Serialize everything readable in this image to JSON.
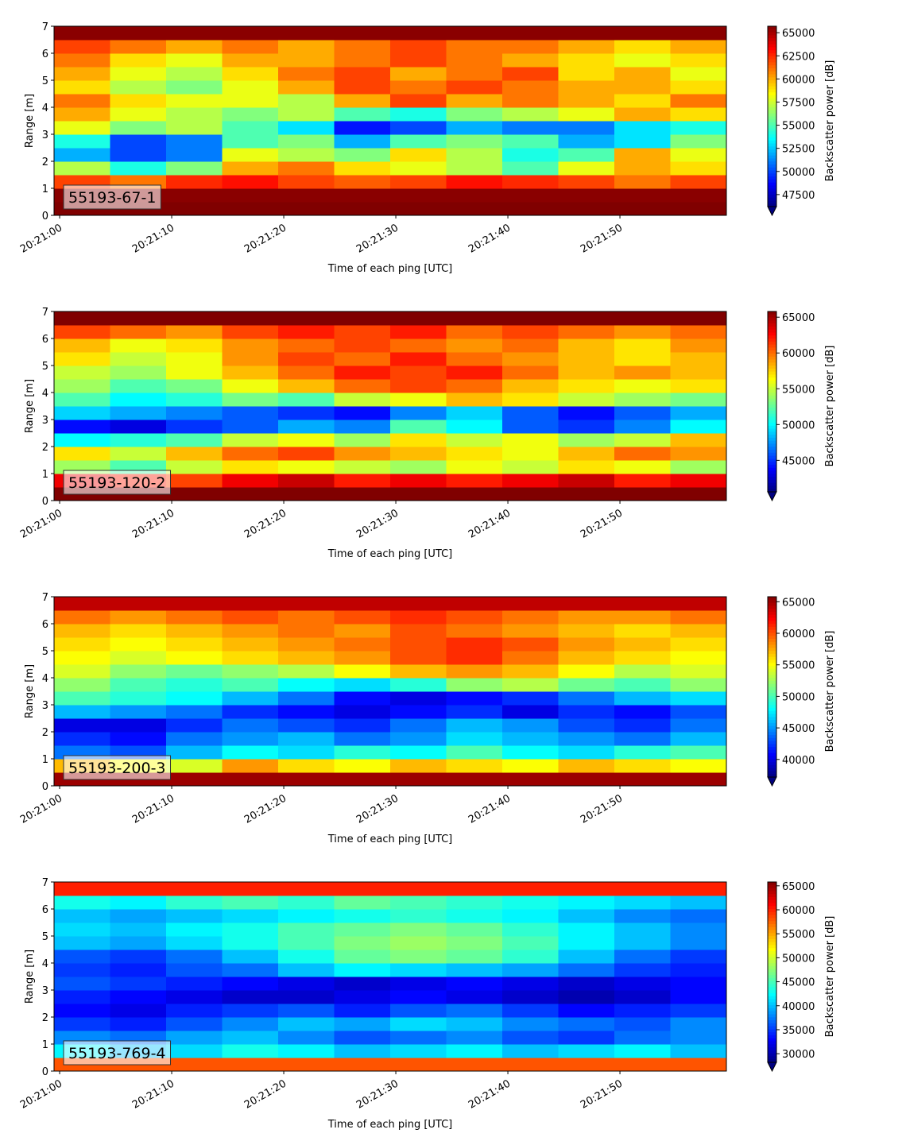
{
  "chart_data": [
    {
      "type": "heatmap",
      "annotation": "55193-67-1",
      "xlabel": "Time of each ping [UTC]",
      "ylabel": "Range [m]",
      "colorbar_label": "Backscatter power [dB]",
      "colormap": "jet",
      "x": [
        "20:21:02",
        "20:21:07",
        "20:21:12",
        "20:21:17",
        "20:21:22",
        "20:21:27",
        "20:21:32",
        "20:21:37",
        "20:21:42",
        "20:21:47",
        "20:21:52",
        "20:21:57"
      ],
      "y": [
        0.25,
        0.75,
        1.25,
        1.75,
        2.25,
        2.75,
        3.25,
        3.75,
        4.25,
        4.75,
        5.25,
        5.75,
        6.25,
        6.75
      ],
      "z": [
        [
          66000,
          66000,
          66000,
          66000,
          66000,
          66000,
          66000,
          66000,
          66000,
          66000,
          66000,
          66000
        ],
        [
          65500,
          65500,
          65500,
          65500,
          65500,
          65500,
          65500,
          65500,
          65500,
          65500,
          65500,
          65500
        ],
        [
          62000,
          61000,
          62500,
          63000,
          62000,
          61500,
          62000,
          63000,
          62500,
          62000,
          61000,
          62000
        ],
        [
          57000,
          54000,
          56000,
          60000,
          61000,
          59000,
          58000,
          57000,
          55000,
          58000,
          60000,
          59000
        ],
        [
          52000,
          50000,
          51000,
          58000,
          57000,
          56000,
          59000,
          57000,
          54000,
          55000,
          60000,
          58000
        ],
        [
          54000,
          50000,
          51000,
          55000,
          56000,
          52000,
          55000,
          56000,
          55000,
          52000,
          53000,
          56000
        ],
        [
          58000,
          56000,
          57000,
          55000,
          53000,
          49000,
          50000,
          52000,
          51000,
          51000,
          53000,
          54000
        ],
        [
          60000,
          58000,
          57000,
          56000,
          57000,
          55000,
          54000,
          56000,
          57000,
          58000,
          60000,
          59000
        ],
        [
          61000,
          59000,
          58000,
          58000,
          57000,
          60000,
          62000,
          60000,
          61000,
          60000,
          59000,
          61000
        ],
        [
          59000,
          57000,
          56000,
          58000,
          60000,
          62000,
          61000,
          62000,
          61000,
          60000,
          60000,
          59000
        ],
        [
          60000,
          58000,
          57000,
          59000,
          61000,
          62000,
          60000,
          61000,
          62000,
          59000,
          60000,
          58000
        ],
        [
          61000,
          59000,
          58000,
          60000,
          60000,
          61000,
          62000,
          61000,
          60000,
          59000,
          58000,
          59000
        ],
        [
          62000,
          61000,
          60000,
          61000,
          60000,
          61000,
          62000,
          61000,
          61000,
          60000,
          59000,
          60000
        ],
        [
          65500,
          65500,
          65500,
          65500,
          65500,
          65500,
          65500,
          65500,
          65500,
          65500,
          65500,
          65500
        ]
      ],
      "xlim": [
        "20:20:59.5",
        "20:21:59.5"
      ],
      "xticks": [
        "20:21:00",
        "20:21:10",
        "20:21:20",
        "20:21:30",
        "20:21:40",
        "20:21:50"
      ],
      "ylim": [
        0,
        7
      ],
      "yticks": [
        0,
        1,
        2,
        3,
        4,
        5,
        6,
        7
      ],
      "clim": [
        46200,
        65700
      ],
      "cticks": [
        47500,
        50000,
        52500,
        55000,
        57500,
        60000,
        62500,
        65000
      ]
    },
    {
      "type": "heatmap",
      "annotation": "55193-120-2",
      "xlabel": "Time of each ping [UTC]",
      "ylabel": "Range [m]",
      "colorbar_label": "Backscatter power [dB]",
      "colormap": "jet",
      "x": [
        "20:21:02",
        "20:21:07",
        "20:21:12",
        "20:21:17",
        "20:21:22",
        "20:21:27",
        "20:21:32",
        "20:21:37",
        "20:21:42",
        "20:21:47",
        "20:21:52",
        "20:21:57"
      ],
      "y": [
        0.25,
        0.75,
        1.25,
        1.75,
        2.25,
        2.75,
        3.25,
        3.75,
        4.25,
        4.75,
        5.25,
        5.75,
        6.25,
        6.75
      ],
      "z": [
        [
          65800,
          65800,
          65800,
          65800,
          65800,
          65800,
          65800,
          65800,
          65800,
          65800,
          65800,
          65800
        ],
        [
          63000,
          62000,
          61000,
          63000,
          64000,
          62000,
          63000,
          62000,
          63000,
          64000,
          62000,
          63000
        ],
        [
          54000,
          52000,
          55000,
          57000,
          56000,
          55000,
          54000,
          56000,
          55000,
          57000,
          56000,
          54000
        ],
        [
          57000,
          55000,
          58000,
          60000,
          61000,
          59000,
          58000,
          57000,
          56000,
          58000,
          60000,
          59000
        ],
        [
          50000,
          51000,
          52000,
          55000,
          56000,
          54000,
          57000,
          55000,
          56000,
          54000,
          55000,
          58000
        ],
        [
          44000,
          43000,
          45000,
          46000,
          48000,
          47000,
          52000,
          50000,
          46000,
          45000,
          47000,
          50000
        ],
        [
          49000,
          48000,
          47000,
          46000,
          45000,
          44000,
          47000,
          49000,
          46000,
          44000,
          46000,
          48000
        ],
        [
          52000,
          50000,
          51000,
          53000,
          52000,
          55000,
          56000,
          58000,
          57000,
          55000,
          54000,
          53000
        ],
        [
          54000,
          52000,
          53000,
          56000,
          58000,
          60000,
          61000,
          60000,
          58000,
          57000,
          56000,
          57000
        ],
        [
          55000,
          54000,
          56000,
          58000,
          60000,
          62000,
          61000,
          62000,
          60000,
          58000,
          59000,
          58000
        ],
        [
          57000,
          55000,
          56000,
          59000,
          61000,
          60000,
          62000,
          60000,
          59000,
          58000,
          57000,
          58000
        ],
        [
          58000,
          56000,
          57000,
          59000,
          60000,
          61000,
          60000,
          59000,
          60000,
          58000,
          57000,
          59000
        ],
        [
          61000,
          60000,
          59000,
          61000,
          62000,
          61000,
          62000,
          60000,
          61000,
          60000,
          59000,
          60000
        ],
        [
          65800,
          65800,
          65800,
          65800,
          65800,
          65800,
          65800,
          65800,
          65800,
          65800,
          65800,
          65800
        ]
      ],
      "xlim": [
        "20:20:59.5",
        "20:21:59.5"
      ],
      "xticks": [
        "20:21:00",
        "20:21:10",
        "20:21:20",
        "20:21:30",
        "20:21:40",
        "20:21:50"
      ],
      "ylim": [
        0,
        7
      ],
      "yticks": [
        0,
        1,
        2,
        3,
        4,
        5,
        6,
        7
      ],
      "clim": [
        40600,
        65800
      ],
      "cticks": [
        45000,
        50000,
        55000,
        60000,
        65000
      ]
    },
    {
      "type": "heatmap",
      "annotation": "55193-200-3",
      "xlabel": "Time of each ping [UTC]",
      "ylabel": "Range [m]",
      "colorbar_label": "Backscatter power [dB]",
      "colormap": "jet",
      "x": [
        "20:21:02",
        "20:21:07",
        "20:21:12",
        "20:21:17",
        "20:21:22",
        "20:21:27",
        "20:21:32",
        "20:21:37",
        "20:21:42",
        "20:21:47",
        "20:21:52",
        "20:21:57"
      ],
      "y": [
        0.25,
        0.75,
        1.25,
        1.75,
        2.25,
        2.75,
        3.25,
        3.75,
        4.25,
        4.75,
        5.25,
        5.75,
        6.25,
        6.75
      ],
      "z": [
        [
          65000,
          65000,
          65000,
          65000,
          65000,
          65000,
          65000,
          65000,
          65000,
          65000,
          65000,
          65000
        ],
        [
          57000,
          55000,
          54000,
          58000,
          56000,
          55000,
          57000,
          56000,
          55000,
          57000,
          56000,
          55000
        ],
        [
          44000,
          43000,
          46000,
          48000,
          47000,
          49000,
          48000,
          50000,
          48000,
          47000,
          49000,
          50000
        ],
        [
          42000,
          41000,
          44000,
          45000,
          46000,
          44000,
          45000,
          47000,
          46000,
          45000,
          44000,
          46000
        ],
        [
          40000,
          40000,
          42000,
          44000,
          43000,
          42000,
          44000,
          46000,
          45000,
          43000,
          42000,
          44000
        ],
        [
          46000,
          45000,
          44000,
          42000,
          41000,
          40000,
          41000,
          42000,
          40000,
          42000,
          41000,
          43000
        ],
        [
          50000,
          49000,
          48000,
          46000,
          44000,
          41000,
          40000,
          41000,
          42000,
          44000,
          46000,
          47000
        ],
        [
          52000,
          50000,
          49000,
          50000,
          48000,
          47000,
          49000,
          52000,
          53000,
          51000,
          50000,
          52000
        ],
        [
          54000,
          52000,
          51000,
          52000,
          53000,
          55000,
          57000,
          58000,
          57000,
          55000,
          53000,
          54000
        ],
        [
          55000,
          54000,
          55000,
          56000,
          57000,
          58000,
          60000,
          61000,
          59000,
          57000,
          56000,
          55000
        ],
        [
          56000,
          55000,
          56000,
          57000,
          58000,
          59000,
          60000,
          61000,
          60000,
          58000,
          57000,
          56000
        ],
        [
          57000,
          56000,
          57000,
          58000,
          59000,
          58000,
          60000,
          59000,
          58000,
          57000,
          56000,
          57000
        ],
        [
          59000,
          58000,
          59000,
          60000,
          59000,
          60000,
          61000,
          60000,
          59000,
          58000,
          58000,
          59000
        ],
        [
          64000,
          64000,
          64000,
          64000,
          64000,
          64000,
          64000,
          64000,
          64000,
          64000,
          64000,
          64000
        ]
      ],
      "xlim": [
        "20:20:59.5",
        "20:21:59.5"
      ],
      "xticks": [
        "20:21:00",
        "20:21:10",
        "20:21:20",
        "20:21:30",
        "20:21:40",
        "20:21:50"
      ],
      "ylim": [
        0,
        7
      ],
      "yticks": [
        0,
        1,
        2,
        3,
        4,
        5,
        6,
        7
      ],
      "clim": [
        37200,
        65800
      ],
      "cticks": [
        40000,
        45000,
        50000,
        55000,
        60000,
        65000
      ]
    },
    {
      "type": "heatmap",
      "annotation": "55193-769-4",
      "xlabel": "Time of each ping [UTC]",
      "ylabel": "Range [m]",
      "colorbar_label": "Backscatter power [dB]",
      "colormap": "jet",
      "x": [
        "20:21:02",
        "20:21:07",
        "20:21:12",
        "20:21:17",
        "20:21:22",
        "20:21:27",
        "20:21:32",
        "20:21:37",
        "20:21:42",
        "20:21:47",
        "20:21:52",
        "20:21:57"
      ],
      "y": [
        0.25,
        0.75,
        1.25,
        1.75,
        2.25,
        2.75,
        3.25,
        3.75,
        4.25,
        4.75,
        5.25,
        5.75,
        6.25,
        6.75
      ],
      "z": [
        [
          58000,
          58000,
          58000,
          58000,
          58000,
          58000,
          58000,
          58000,
          58000,
          58000,
          58000,
          58000
        ],
        [
          42000,
          40000,
          41000,
          43000,
          42000,
          40000,
          41000,
          42000,
          40000,
          41000,
          42000,
          40000
        ],
        [
          38000,
          37000,
          39000,
          40000,
          38000,
          36000,
          37000,
          38000,
          36000,
          35000,
          37000,
          38000
        ],
        [
          35000,
          34000,
          36000,
          38000,
          40000,
          39000,
          41000,
          40000,
          38000,
          37000,
          36000,
          38000
        ],
        [
          33000,
          32000,
          34000,
          35000,
          36000,
          34000,
          36000,
          37000,
          35000,
          33000,
          34000,
          35000
        ],
        [
          34000,
          33000,
          32000,
          31000,
          31000,
          32000,
          33000,
          32000,
          31000,
          30000,
          31000,
          33000
        ],
        [
          36000,
          35000,
          34000,
          33000,
          32000,
          31000,
          32000,
          33000,
          32000,
          31000,
          32000,
          33000
        ],
        [
          35000,
          34000,
          36000,
          37000,
          40000,
          42000,
          41000,
          40000,
          39000,
          37000,
          35000,
          34000
        ],
        [
          36000,
          35000,
          37000,
          40000,
          43000,
          46000,
          47000,
          46000,
          44000,
          40000,
          37000,
          35000
        ],
        [
          40000,
          39000,
          41000,
          43000,
          45000,
          47000,
          48000,
          47000,
          45000,
          42000,
          40000,
          38000
        ],
        [
          41000,
          40000,
          42000,
          43000,
          45000,
          46000,
          47000,
          46000,
          44000,
          42000,
          40000,
          38000
        ],
        [
          40000,
          39000,
          40000,
          41000,
          42000,
          43000,
          44000,
          43000,
          42000,
          40000,
          38000,
          37000
        ],
        [
          43000,
          42000,
          44000,
          45000,
          44000,
          46000,
          45000,
          44000,
          43000,
          42000,
          41000,
          40000
        ],
        [
          60000,
          60000,
          60000,
          60000,
          60000,
          60000,
          60000,
          60000,
          60000,
          60000,
          60000,
          60000
        ]
      ],
      "xlim": [
        "20:20:59.5",
        "20:21:59.5"
      ],
      "xticks": [
        "20:21:00",
        "20:21:10",
        "20:21:20",
        "20:21:30",
        "20:21:40",
        "20:21:50"
      ],
      "ylim": [
        0,
        7
      ],
      "yticks": [
        0,
        1,
        2,
        3,
        4,
        5,
        6,
        7
      ],
      "clim": [
        28200,
        65800
      ],
      "cticks": [
        30000,
        35000,
        40000,
        45000,
        50000,
        55000,
        60000,
        65000
      ]
    }
  ]
}
